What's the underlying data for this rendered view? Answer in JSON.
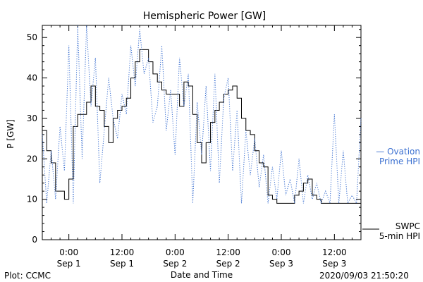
{
  "chart_data": {
    "type": "line",
    "title": "Hemispheric Power [GW]",
    "ylabel": "P [GW]",
    "xlabel": "Date and Time",
    "ylim": [
      0,
      53
    ],
    "xlim": [
      -6,
      66
    ],
    "yticks": [
      0,
      10,
      20,
      30,
      40,
      50
    ],
    "xticks": [
      {
        "x": 0,
        "top": "0:00",
        "bottom": "Sep 1"
      },
      {
        "x": 12,
        "top": "12:00",
        "bottom": "Sep 1"
      },
      {
        "x": 24,
        "top": "0:00",
        "bottom": "Sep 2"
      },
      {
        "x": 36,
        "top": "12:00",
        "bottom": "Sep 2"
      },
      {
        "x": 48,
        "top": "0:00",
        "bottom": "Sep 3"
      },
      {
        "x": 60,
        "top": "12:00",
        "bottom": "Sep 3"
      }
    ],
    "series": [
      {
        "name": "SWPC 5-min HPI",
        "legend_lines": [
          "SWPC",
          "5-min HPI"
        ],
        "style": "solid",
        "color": "#000000",
        "points": [
          [
            -6,
            27
          ],
          [
            -5,
            22
          ],
          [
            -4,
            19
          ],
          [
            -3,
            12
          ],
          [
            -2,
            12
          ],
          [
            -1,
            10
          ],
          [
            0,
            15
          ],
          [
            1,
            28
          ],
          [
            2,
            31
          ],
          [
            3,
            31
          ],
          [
            4,
            34
          ],
          [
            5,
            38
          ],
          [
            6,
            33
          ],
          [
            7,
            32
          ],
          [
            8,
            28
          ],
          [
            9,
            24
          ],
          [
            10,
            30
          ],
          [
            11,
            32
          ],
          [
            12,
            33
          ],
          [
            13,
            35
          ],
          [
            14,
            40
          ],
          [
            15,
            44
          ],
          [
            16,
            47
          ],
          [
            17,
            47
          ],
          [
            18,
            44
          ],
          [
            19,
            41
          ],
          [
            20,
            39
          ],
          [
            21,
            37
          ],
          [
            22,
            36
          ],
          [
            23,
            36
          ],
          [
            24,
            36
          ],
          [
            25,
            33
          ],
          [
            26,
            39
          ],
          [
            27,
            38
          ],
          [
            28,
            31
          ],
          [
            29,
            24
          ],
          [
            30,
            19
          ],
          [
            31,
            24
          ],
          [
            32,
            29
          ],
          [
            33,
            32
          ],
          [
            34,
            34
          ],
          [
            35,
            36
          ],
          [
            36,
            37
          ],
          [
            37,
            38
          ],
          [
            38,
            35
          ],
          [
            39,
            30
          ],
          [
            40,
            27
          ],
          [
            41,
            26
          ],
          [
            42,
            22
          ],
          [
            43,
            19
          ],
          [
            44,
            18
          ],
          [
            45,
            11
          ],
          [
            46,
            10
          ],
          [
            47,
            9
          ],
          [
            48,
            9
          ],
          [
            49,
            9
          ],
          [
            50,
            9
          ],
          [
            51,
            11
          ],
          [
            52,
            12
          ],
          [
            53,
            14
          ],
          [
            54,
            15
          ],
          [
            55,
            11
          ],
          [
            56,
            10
          ],
          [
            57,
            9
          ],
          [
            58,
            9
          ],
          [
            59,
            9
          ],
          [
            60,
            9
          ],
          [
            61,
            9
          ],
          [
            62,
            9
          ],
          [
            63,
            9
          ],
          [
            64,
            9
          ],
          [
            65,
            9
          ],
          [
            66,
            9
          ]
        ]
      },
      {
        "name": "Ovation Prime HPI",
        "legend_lines": [
          "— Ovation",
          "Prime HPI"
        ],
        "style": "dotted",
        "color": "#3a6fd0",
        "points": [
          [
            -6,
            26
          ],
          [
            -5,
            9
          ],
          [
            -4,
            22
          ],
          [
            -3,
            10
          ],
          [
            -2,
            28
          ],
          [
            -1,
            17
          ],
          [
            0,
            48
          ],
          [
            1,
            9
          ],
          [
            2,
            53
          ],
          [
            3,
            20
          ],
          [
            4,
            53
          ],
          [
            5,
            33
          ],
          [
            6,
            45
          ],
          [
            7,
            14
          ],
          [
            8,
            27
          ],
          [
            9,
            40
          ],
          [
            10,
            30
          ],
          [
            11,
            25
          ],
          [
            12,
            36
          ],
          [
            13,
            31
          ],
          [
            14,
            48
          ],
          [
            15,
            38
          ],
          [
            16,
            52
          ],
          [
            17,
            41
          ],
          [
            18,
            45
          ],
          [
            19,
            29
          ],
          [
            20,
            33
          ],
          [
            21,
            48
          ],
          [
            22,
            27
          ],
          [
            23,
            37
          ],
          [
            24,
            21
          ],
          [
            25,
            45
          ],
          [
            26,
            33
          ],
          [
            27,
            41
          ],
          [
            28,
            9
          ],
          [
            29,
            34
          ],
          [
            30,
            21
          ],
          [
            31,
            38
          ],
          [
            32,
            17
          ],
          [
            33,
            41
          ],
          [
            34,
            14
          ],
          [
            35,
            35
          ],
          [
            36,
            40
          ],
          [
            37,
            17
          ],
          [
            38,
            32
          ],
          [
            39,
            9
          ],
          [
            40,
            27
          ],
          [
            41,
            16
          ],
          [
            42,
            25
          ],
          [
            43,
            13
          ],
          [
            44,
            21
          ],
          [
            45,
            9
          ],
          [
            46,
            18
          ],
          [
            47,
            10
          ],
          [
            48,
            22
          ],
          [
            49,
            11
          ],
          [
            50,
            15
          ],
          [
            51,
            9
          ],
          [
            52,
            20
          ],
          [
            53,
            9
          ],
          [
            54,
            16
          ],
          [
            55,
            10
          ],
          [
            56,
            14
          ],
          [
            57,
            9
          ],
          [
            58,
            12
          ],
          [
            59,
            9
          ],
          [
            60,
            31
          ],
          [
            61,
            9
          ],
          [
            62,
            22
          ],
          [
            63,
            9
          ],
          [
            64,
            11
          ],
          [
            65,
            9
          ],
          [
            66,
            30
          ]
        ]
      }
    ]
  },
  "footer": {
    "left": "Plot: CCMC",
    "right": "2020/09/03 21:50:20"
  }
}
